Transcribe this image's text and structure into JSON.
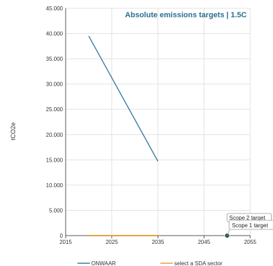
{
  "chart_data": {
    "type": "line",
    "title": "Absolute emissions targets | 1.5C",
    "ylabel": "tCO2e",
    "xlabel": "",
    "xlim": [
      2015,
      2055
    ],
    "ylim": [
      0,
      45000
    ],
    "x_ticks": [
      "2015",
      "2025",
      "2035",
      "2045",
      "2055"
    ],
    "y_ticks": [
      "0",
      "5.000",
      "10.000",
      "15.000",
      "20.000",
      "25.000",
      "30.000",
      "35.000",
      "40.000",
      "45.000"
    ],
    "grid": true,
    "legend_placement": "bottom",
    "series": [
      {
        "name": "ONWAAR",
        "color": "#3a7ca5",
        "points": [
          [
            2020,
            39500
          ],
          [
            2035,
            14700
          ]
        ]
      },
      {
        "name": "select a SDA sector",
        "color": "#e0a23c",
        "points": [
          [
            2020,
            0
          ],
          [
            2035,
            0
          ]
        ]
      }
    ],
    "markers": [
      {
        "label": "Scope 1 target",
        "x": 2050,
        "y": 0,
        "color": "#2e5e3e"
      },
      {
        "label": "Scope 2 target",
        "x": 2050,
        "y": 0,
        "color": "#2e5e3e"
      }
    ],
    "colors": {
      "title": "#2a6f8f",
      "grid": "#e2e2e2",
      "axis": "#555555"
    }
  }
}
